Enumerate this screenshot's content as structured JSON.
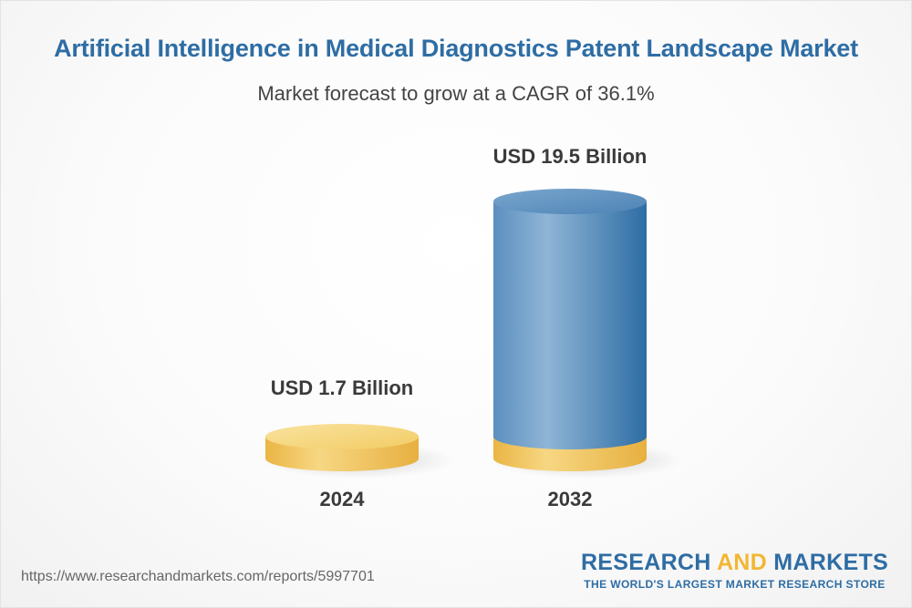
{
  "header": {
    "title": "Artificial Intelligence in Medical Diagnostics Patent Landscape Market",
    "subtitle": "Market forecast to grow at a CAGR of 36.1%"
  },
  "chart_data": {
    "type": "bar",
    "style": "3d-cylinder",
    "categories": [
      "2024",
      "2032"
    ],
    "values": [
      1.7,
      19.5
    ],
    "unit": "USD Billion",
    "data_labels": [
      "USD 1.7 Billion",
      "USD 19.5 Billion"
    ],
    "title": "Artificial Intelligence in Medical Diagnostics Patent Landscape Market",
    "subtitle": "Market forecast to grow at a CAGR of 36.1%",
    "cagr": "36.1%",
    "xlabel": "",
    "ylabel": "",
    "grid": false,
    "legend": "none",
    "colors": {
      "base": "#f2c04f",
      "base_top": "#f7d97f",
      "bar_start": "#6fa1cb",
      "bar_end": "#2e6da4"
    }
  },
  "footer": {
    "url": "https://www.researchandmarkets.com/reports/5997701",
    "logo_part1": "RESEARCH ",
    "logo_part2": "AND",
    "logo_part3": " MARKETS",
    "logo_tagline": "THE WORLD'S LARGEST MARKET RESEARCH STORE"
  }
}
